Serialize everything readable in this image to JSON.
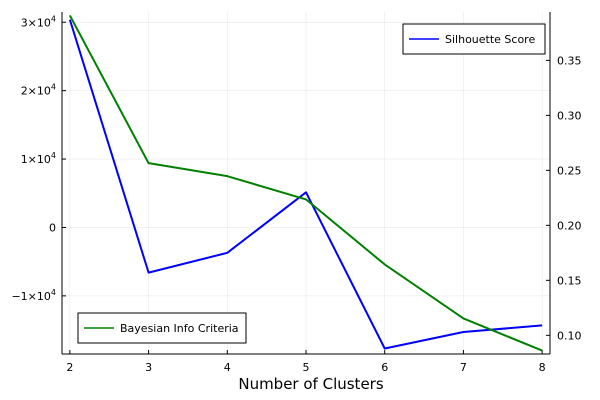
{
  "chart_data": {
    "type": "line",
    "xlabel": "Number of Clusters",
    "x": [
      2,
      3,
      4,
      5,
      6,
      7,
      8
    ],
    "xlim": [
      1.9,
      8.1
    ],
    "x_ticks": [
      "2",
      "3",
      "4",
      "5",
      "6",
      "7",
      "8"
    ],
    "grid": true,
    "left_axis": {
      "ylim": [
        -18500,
        31500
      ],
      "ticks": [
        {
          "value": 30000,
          "base": "3×10",
          "exp": "4"
        },
        {
          "value": 20000,
          "base": "2×10",
          "exp": "4"
        },
        {
          "value": 10000,
          "base": "1×10",
          "exp": "4"
        },
        {
          "value": 0,
          "base": "0",
          "exp": ""
        },
        {
          "value": -10000,
          "base": "−1×10",
          "exp": "4"
        }
      ]
    },
    "right_axis": {
      "ylim": [
        0.083,
        0.394
      ],
      "ticks": [
        "0.10",
        "0.15",
        "0.20",
        "0.25",
        "0.30",
        "0.35"
      ]
    },
    "series": [
      {
        "name": "Silhouette Score",
        "axis": "right",
        "color": "#0000ff",
        "values": [
          0.387,
          0.157,
          0.175,
          0.23,
          0.088,
          0.103,
          0.109
        ],
        "legend_position": "top-right"
      },
      {
        "name": "Bayesian Info Criteria",
        "axis": "left",
        "color": "#008000",
        "values": [
          31000,
          9400,
          7500,
          4100,
          -5400,
          -13300,
          -18000
        ],
        "legend_position": "bottom-left"
      }
    ]
  }
}
